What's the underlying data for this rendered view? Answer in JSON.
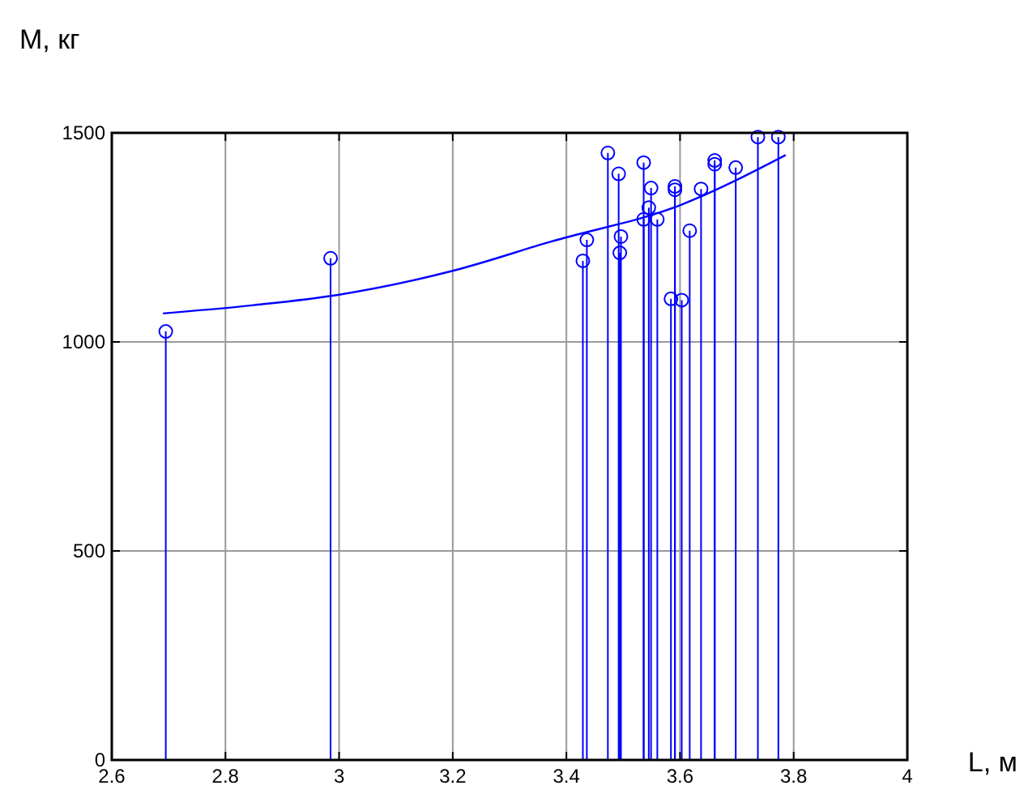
{
  "chart_data": {
    "type": "lollipop",
    "xlabel": "L, м",
    "ylabel": "M, кг",
    "xlim": [
      2.6,
      4
    ],
    "ylim": [
      0,
      1500
    ],
    "xticks": [
      2.6,
      2.8,
      3,
      3.2,
      3.4,
      3.6,
      3.8,
      4
    ],
    "yticks": [
      0,
      500,
      1000,
      1500
    ],
    "grid": true,
    "marker": "circle",
    "series": [
      {
        "color": "#0000ff",
        "x": [
          2.695,
          2.985,
          3.429,
          3.436,
          3.473,
          3.492,
          3.494,
          3.496,
          3.536,
          3.536,
          3.545,
          3.549,
          3.56,
          3.584,
          3.591,
          3.591,
          3.603,
          3.617,
          3.637,
          3.661,
          3.661,
          3.698,
          3.737,
          3.773
        ],
        "values": [
          1025,
          1200,
          1194,
          1244,
          1452,
          1402,
          1213,
          1252,
          1429,
          1293,
          1321,
          1368,
          1293,
          1103,
          1372,
          1364,
          1100,
          1266,
          1366,
          1434,
          1425,
          1417,
          1490,
          1490
        ]
      },
      {
        "type": "line",
        "color": "#0000ff",
        "marker": "none",
        "x": [
          2.69,
          2.85,
          3.0,
          3.2,
          3.373,
          3.6,
          3.786
        ],
        "values": [
          1068,
          1088,
          1113,
          1170,
          1240,
          1327,
          1447
        ]
      }
    ]
  }
}
